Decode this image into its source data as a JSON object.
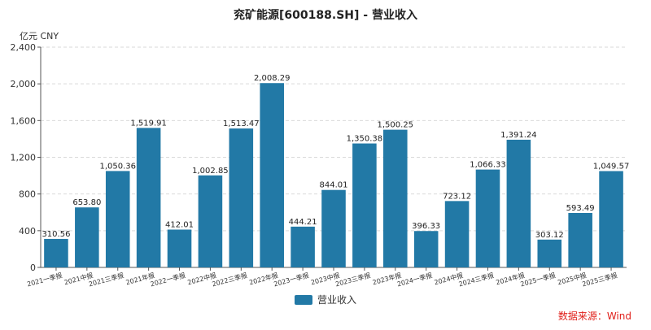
{
  "chart_data": {
    "type": "bar",
    "title": "兖矿能源[600188.SH] - 营业收入",
    "unit": "亿元  CNY",
    "categories": [
      "2021一季报",
      "2021中报",
      "2021三季报",
      "2021年报",
      "2022一季报",
      "2022中报",
      "2022三季报",
      "2022年报",
      "2023一季报",
      "2023中报",
      "2023三季报",
      "2023年报",
      "2024一季报",
      "2024中报",
      "2024三季报",
      "2024年报",
      "2025一季报",
      "2025中报",
      "2025三季报"
    ],
    "series": [
      {
        "name": "营业收入",
        "values": [
          310.56,
          653.8,
          1050.36,
          1519.91,
          412.01,
          1002.85,
          1513.47,
          2008.29,
          444.21,
          844.01,
          1350.38,
          1500.25,
          396.33,
          723.12,
          1066.33,
          1391.24,
          303.12,
          593.49,
          1049.57
        ],
        "labels": [
          "310.56",
          "653.80",
          "1,050.36",
          "1,519.91",
          "412.01",
          "1,002.85",
          "1,513.47",
          "2,008.29",
          "444.21",
          "844.01",
          "1,350.38",
          "1,500.25",
          "396.33",
          "723.12",
          "1,066.33",
          "1,391.24",
          "303.12",
          "593.49",
          "1,049.57"
        ],
        "color": "#2279a6"
      }
    ],
    "ylim": [
      0,
      2400
    ],
    "yticks": [
      0,
      400,
      800,
      1200,
      1600,
      2000,
      2400
    ],
    "ytick_labels": [
      "0",
      "400",
      "800",
      "1,200",
      "1,600",
      "2,000",
      "2,400"
    ],
    "grid": true,
    "legend_position": "bottom-center",
    "source": "数据来源：Wind",
    "source_color": "#e0201b"
  }
}
